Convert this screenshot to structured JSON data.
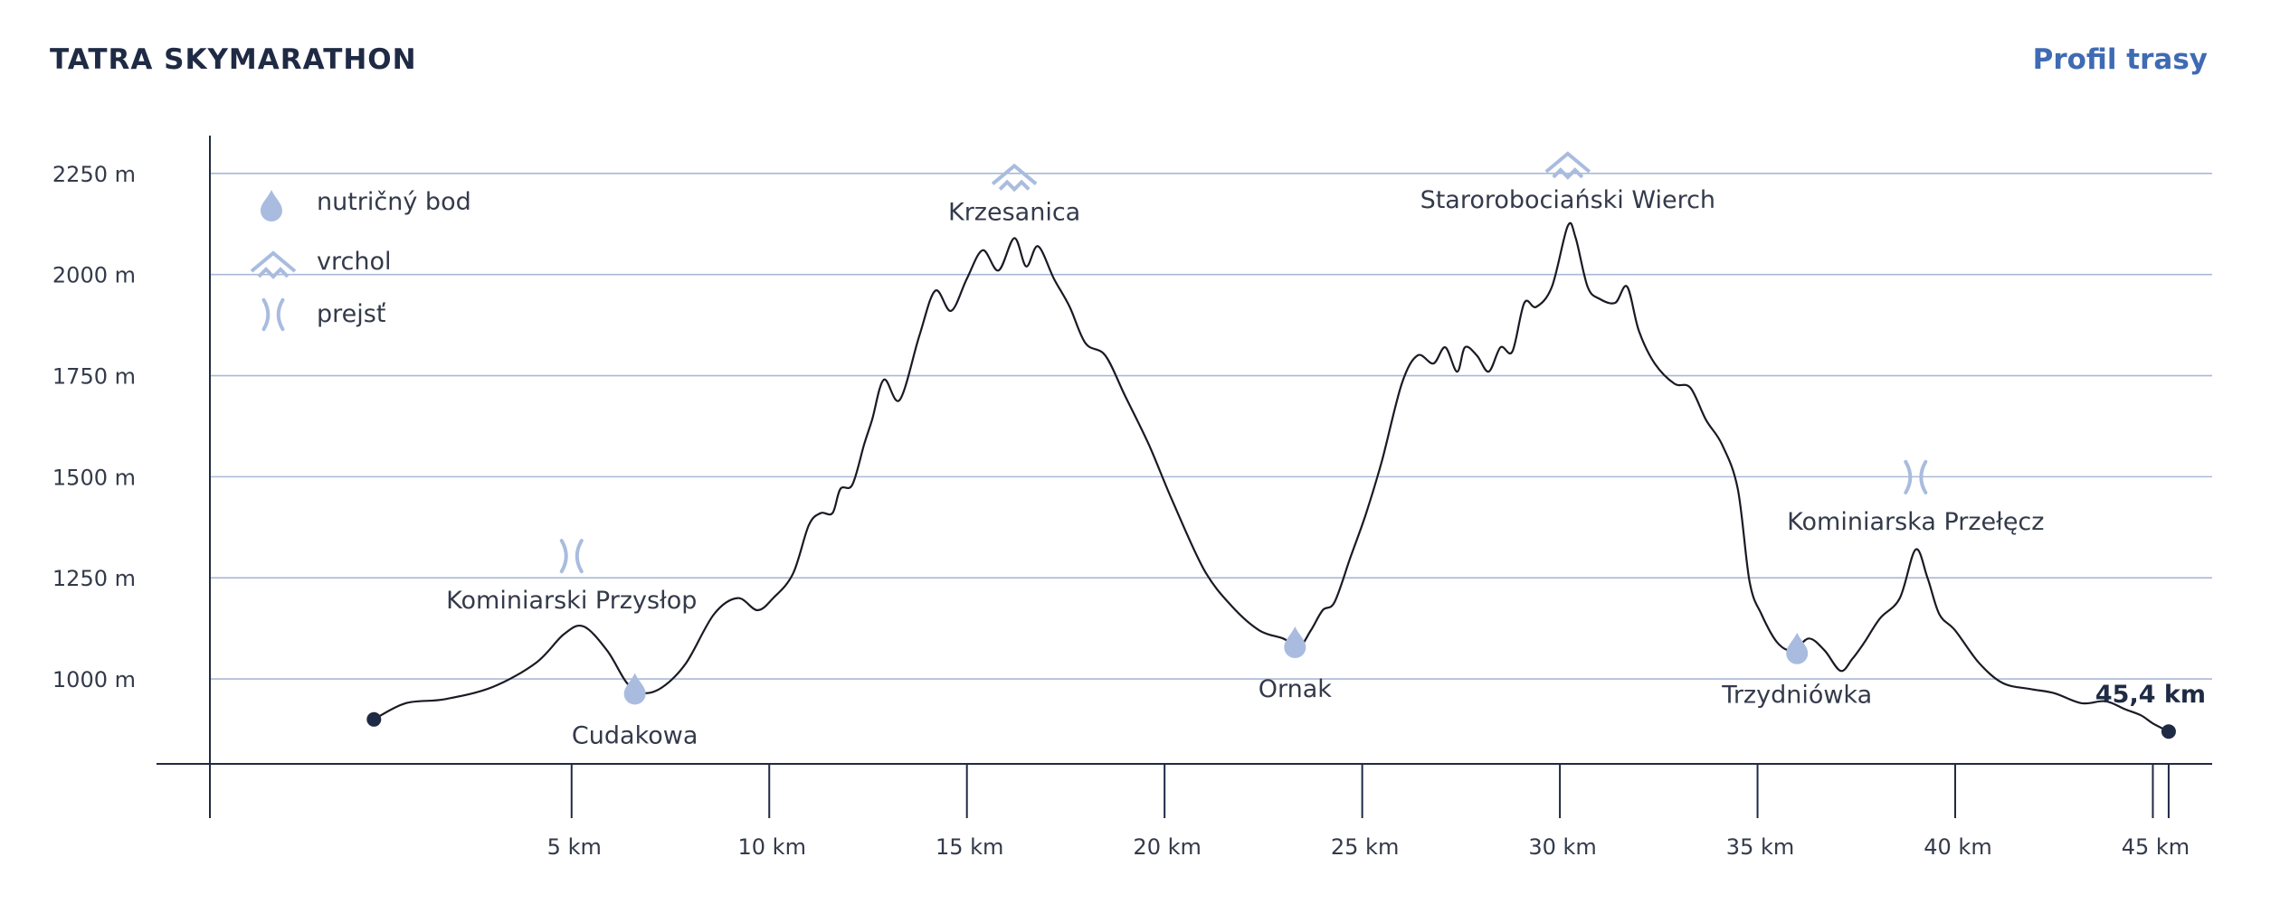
{
  "header": {
    "brand": "TATRA SKYMARATHON",
    "subtitle": "Profil trasy"
  },
  "colors": {
    "axis": "#1f2a44",
    "grid": "#aab8d6",
    "profile": "#1a1a24",
    "icon": "#a9bcdf",
    "accent": "#3f6bb3"
  },
  "legend": [
    {
      "icon": "drop-icon",
      "label": "nutričný bod"
    },
    {
      "icon": "mountain-peak-icon",
      "label": "vrchol"
    },
    {
      "icon": "pass-icon",
      "label": "prejsť"
    }
  ],
  "chart_data": {
    "type": "line",
    "title": "Profil trasy",
    "xlabel": "",
    "ylabel": "",
    "xlim": [
      -5.5,
      46.5
    ],
    "ylim": [
      790,
      2500
    ],
    "grid": true,
    "legend_position": "top-left",
    "y_ticks": [
      1000,
      1250,
      1500,
      1750,
      2000,
      2250
    ],
    "y_tick_labels": [
      "1000 m",
      "1250 m",
      "1500 m",
      "1750 m",
      "2000 m",
      "2250 m"
    ],
    "x_ticks": [
      5,
      10,
      15,
      20,
      25,
      30,
      35,
      40,
      45
    ],
    "x_tick_labels": [
      "5 km",
      "10 km",
      "15 km",
      "20 km",
      "25 km",
      "30 km",
      "35 km",
      "40 km",
      "45 km"
    ],
    "end_tick": 45.4,
    "series": [
      {
        "x": [
          0,
          0.8,
          1.8,
          3,
          4.1,
          4.8,
          5.3,
          5.9,
          6.4,
          6.8,
          7.3,
          7.9,
          8.6,
          9.2,
          9.7,
          10.1,
          10.6,
          11,
          11.3,
          11.6,
          11.8,
          12.1,
          12.4,
          12.6,
          12.9,
          13.3,
          13.8,
          14.2,
          14.6,
          15,
          15.4,
          15.8,
          16.2,
          16.5,
          16.8,
          17.2,
          17.6,
          18,
          18.5,
          19,
          19.6,
          20.2,
          21,
          21.7,
          22.4,
          23,
          23.4,
          23.7,
          24,
          24.3,
          24.7,
          25.1,
          25.5,
          26,
          26.4,
          26.8,
          27.1,
          27.4,
          27.6,
          27.9,
          28.2,
          28.5,
          28.8,
          29.1,
          29.4,
          29.8,
          30.2,
          30.4,
          30.7,
          31,
          31.4,
          31.7,
          32,
          32.4,
          32.9,
          33.3,
          33.7,
          34.1,
          34.5,
          34.8,
          35.1,
          35.5,
          35.9,
          36.3,
          36.7,
          37.1,
          37.4,
          37.7,
          38.1,
          38.6,
          39,
          39.3,
          39.6,
          40,
          40.6,
          41.2,
          41.9,
          42.5,
          43.2,
          43.8,
          44.3,
          44.7,
          45,
          45.4
        ],
        "y": [
          900,
          940,
          950,
          980,
          1040,
          1110,
          1130,
          1070,
          990,
          965,
          980,
          1040,
          1160,
          1200,
          1170,
          1200,
          1260,
          1380,
          1410,
          1410,
          1470,
          1480,
          1580,
          1640,
          1740,
          1690,
          1850,
          1960,
          1910,
          1990,
          2060,
          2010,
          2090,
          2020,
          2070,
          1990,
          1920,
          1830,
          1800,
          1700,
          1580,
          1440,
          1270,
          1180,
          1120,
          1100,
          1080,
          1120,
          1170,
          1190,
          1300,
          1410,
          1540,
          1730,
          1800,
          1780,
          1820,
          1760,
          1820,
          1800,
          1760,
          1820,
          1810,
          1930,
          1920,
          1970,
          2120,
          2090,
          1970,
          1940,
          1930,
          1970,
          1860,
          1780,
          1730,
          1720,
          1640,
          1580,
          1470,
          1240,
          1160,
          1090,
          1070,
          1100,
          1070,
          1020,
          1050,
          1090,
          1150,
          1200,
          1320,
          1250,
          1160,
          1120,
          1040,
          990,
          975,
          965,
          940,
          945,
          925,
          910,
          890,
          870
        ]
      }
    ],
    "annotations": [
      {
        "label": "Cudakowa",
        "type": "nutrition",
        "x": 6.6,
        "y": 970
      },
      {
        "label": "Kominiarski Przysłop",
        "type": "pass",
        "x": 5.0,
        "y": 1125
      },
      {
        "label": "Krzesanica",
        "type": "peak",
        "x": 16.2,
        "y": 2090
      },
      {
        "label": "Ornak",
        "type": "nutrition",
        "x": 23.3,
        "y": 1085
      },
      {
        "label": "Starorobociański Wierch",
        "type": "peak",
        "x": 30.2,
        "y": 2120
      },
      {
        "label": "Trzydniówka",
        "type": "nutrition",
        "x": 36.0,
        "y": 1070
      },
      {
        "label": "Kominiarska Przełęcz",
        "type": "pass",
        "x": 39.0,
        "y": 1320
      }
    ],
    "end_label": "45,4 km"
  }
}
